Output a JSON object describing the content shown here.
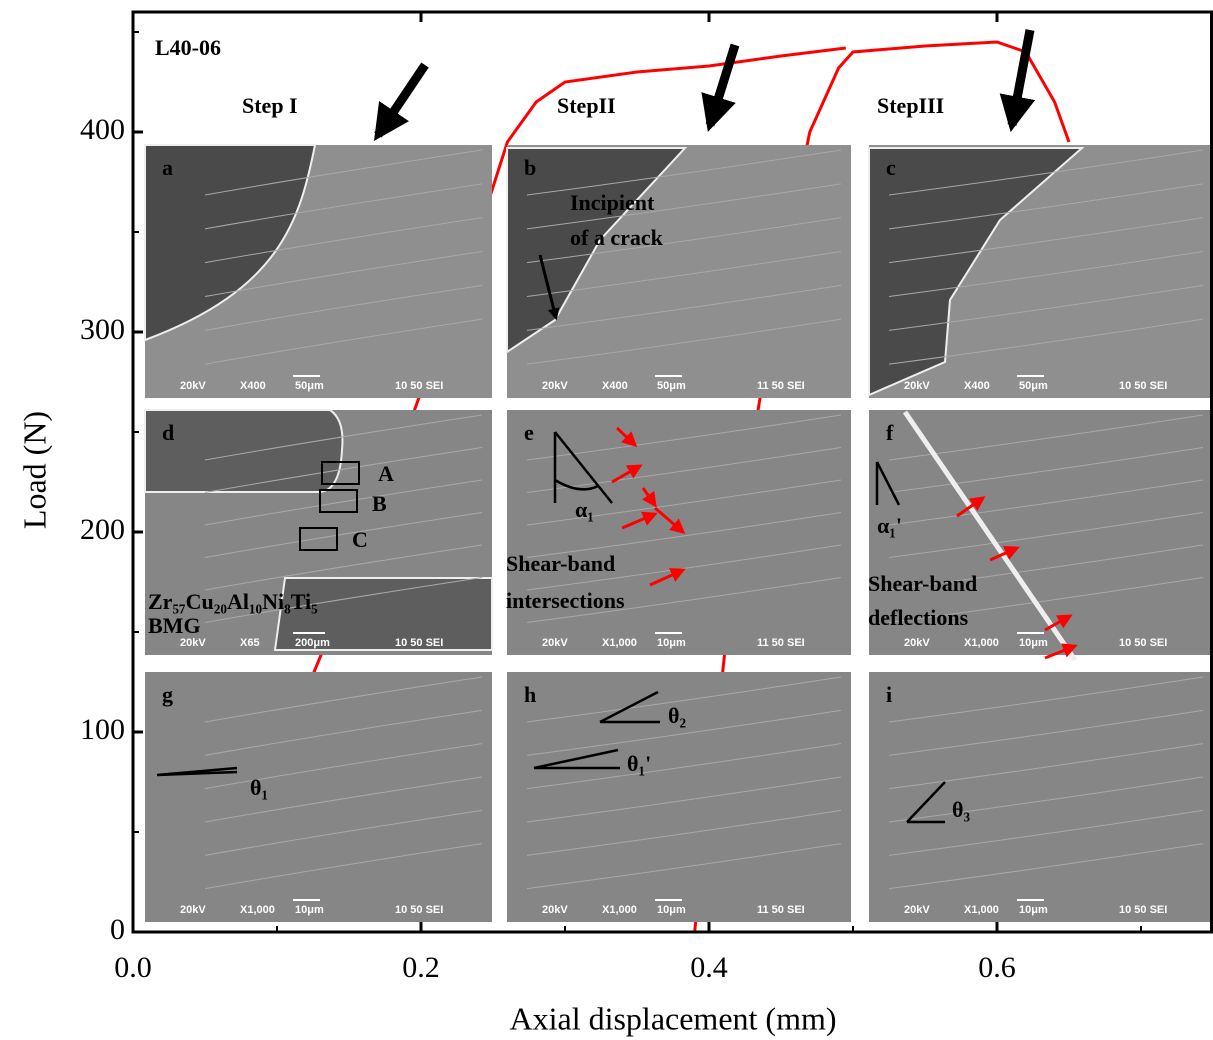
{
  "chart_data": {
    "type": "line",
    "title": "L40-06",
    "steps": [
      "Step I",
      "StepII",
      "StepIII"
    ],
    "xlabel": "Axial displacement (mm)",
    "ylabel": "Load (N)",
    "xlim": [
      0,
      0.75
    ],
    "ylim": [
      0,
      460
    ],
    "xticks": [
      {
        "value": 0,
        "label": "0.0"
      },
      0.2,
      0.4,
      0.6
    ],
    "yticks": [
      0,
      100,
      200,
      300,
      400
    ],
    "xminorticks": [
      0.1,
      0.3,
      0.5,
      0.7
    ],
    "yminorticks": [
      50,
      150,
      250,
      350,
      450
    ],
    "series": [
      {
        "color": "#ff0000",
        "x": [
          0.12,
          0.16,
          0.2,
          0.24,
          0.26,
          0.28,
          0.3,
          0.35,
          0.4,
          0.45,
          0.495
        ],
        "values": [
          120,
          190,
          270,
          350,
          395,
          415,
          425,
          430,
          433,
          438,
          442
        ]
      },
      {
        "color": "#ff0000",
        "x": [
          0.39,
          0.42,
          0.45,
          0.47,
          0.49,
          0.5,
          0.55,
          0.6,
          0.62,
          0.64,
          0.65
        ],
        "values": [
          0,
          200,
          330,
          400,
          432,
          440,
          443,
          445,
          440,
          415,
          395
        ]
      }
    ],
    "panels": [
      {
        "label": "a",
        "info": [
          "20kV",
          "X400",
          "50μm",
          "10 50 SEI"
        ],
        "annotations": []
      },
      {
        "label": "b",
        "info": [
          "20kV",
          "X400",
          "50μm",
          "11 50 SEI"
        ],
        "annotations": [
          "Incipient",
          "of a crack"
        ]
      },
      {
        "label": "c",
        "info": [
          "20kV",
          "X400",
          "50μm",
          "10 50 SEI"
        ],
        "annotations": []
      },
      {
        "label": "d",
        "info": [
          "20kV",
          "X65",
          "200μm",
          "10 50 SEI"
        ],
        "annotations": [
          "A",
          "B",
          "C",
          "Zr₅₇Cu₂₀Al₁₀Ni₈Ti₅",
          "BMG"
        ]
      },
      {
        "label": "e",
        "info": [
          "20kV",
          "X1,000",
          "10μm",
          "11 50 SEI"
        ],
        "annotations": [
          "α₁",
          "Shear-band",
          "intersections"
        ]
      },
      {
        "label": "f",
        "info": [
          "20kV",
          "X1,000",
          "10μm",
          "10 50 SEI"
        ],
        "annotations": [
          "α₁'",
          "Shear-band",
          "deflections"
        ]
      },
      {
        "label": "g",
        "info": [
          "20kV",
          "X1,000",
          "10μm",
          "10 50 SEI"
        ],
        "annotations": [
          "θ₁"
        ]
      },
      {
        "label": "h",
        "info": [
          "20kV",
          "X1,000",
          "10μm",
          "11 50 SEI"
        ],
        "annotations": [
          "θ₂",
          "θ₁'"
        ]
      },
      {
        "label": "i",
        "info": [
          "20kV",
          "X1,000",
          "10μm",
          "10 50 SEI"
        ],
        "annotations": [
          "θ₃"
        ]
      }
    ]
  }
}
